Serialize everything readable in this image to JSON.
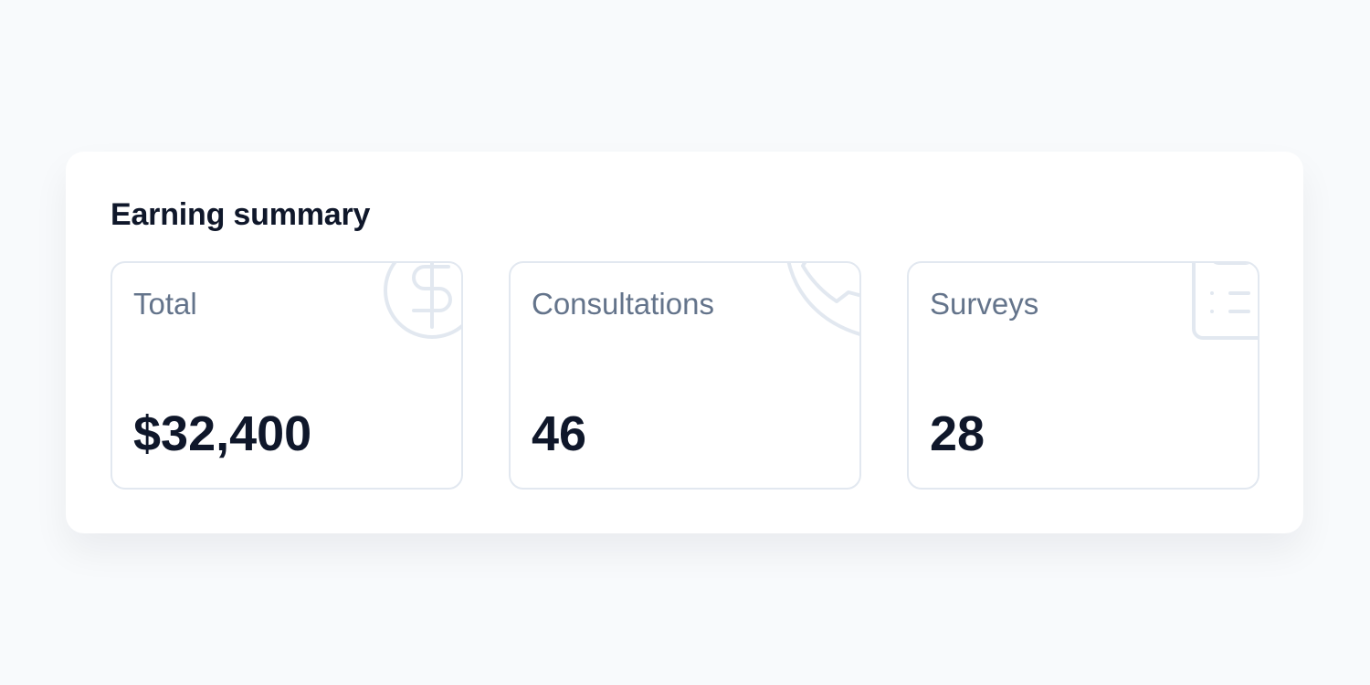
{
  "card": {
    "title": "Earning summary"
  },
  "stats": [
    {
      "label": "Total",
      "value": "$32,400",
      "icon": "dollar-circle-icon"
    },
    {
      "label": "Consultations",
      "value": "46",
      "icon": "phone-icon"
    },
    {
      "label": "Surveys",
      "value": "28",
      "icon": "clipboard-list-icon"
    }
  ],
  "colors": {
    "background": "#f8fafc",
    "border": "#e2e8f0",
    "label": "#64748b",
    "value": "#0f172a"
  }
}
